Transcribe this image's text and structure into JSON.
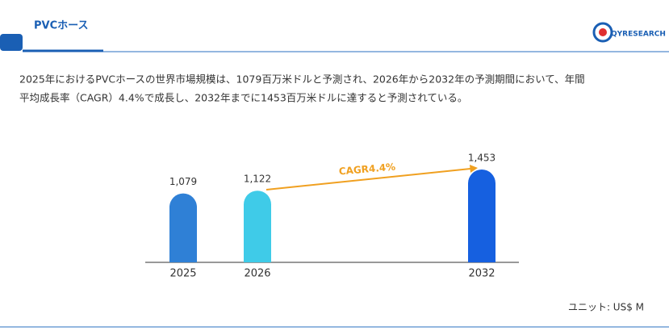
{
  "header": {
    "title": "PVCホース",
    "logo": "QYRESEARCH"
  },
  "description": [
    "2025年におけるPVCホースの世界市場規模は、1079百万米ドルと予測され、2026年から2032年の予測期間において、年間",
    "平均成長率（CAGR）4.4%で成長し、2032年までに1453百万米ドルに達すると予測されている。"
  ],
  "chart_data": {
    "type": "bar",
    "categories": [
      "2025",
      "2026",
      "2032"
    ],
    "values": [
      1079,
      1122,
      1453
    ],
    "value_labels": [
      "1,079",
      "1,122",
      "1,453"
    ],
    "colors": [
      "#2f80d6",
      "#3fcbe8",
      "#1660e0"
    ],
    "annotation": "CAGR4.4%",
    "unit": "ユニット: US$ M"
  }
}
